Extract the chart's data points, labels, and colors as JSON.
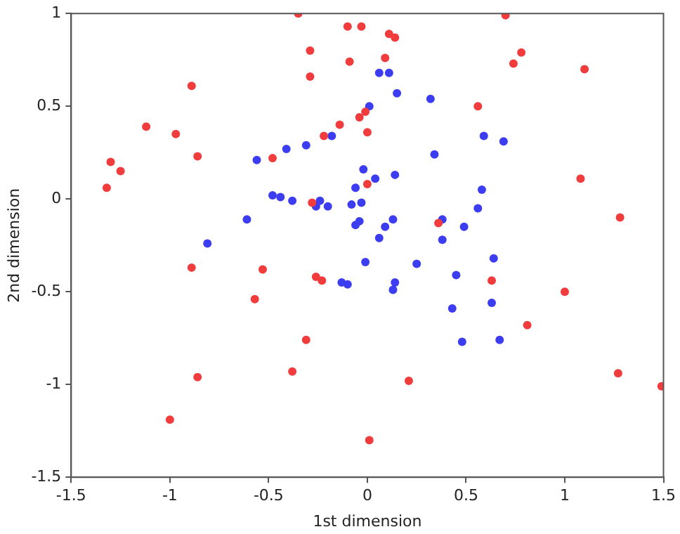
{
  "chart_data": {
    "type": "scatter",
    "xlabel": "1st dimension",
    "ylabel": "2nd dimension",
    "xlim": [
      -1.5,
      1.5
    ],
    "ylim": [
      -1.5,
      1
    ],
    "xticks": [
      -1.5,
      -1,
      -0.5,
      0,
      0.5,
      1,
      1.5
    ],
    "yticks": [
      -1.5,
      -1,
      -0.5,
      0,
      0.5,
      1
    ],
    "grid": false,
    "legend": false,
    "marker": "circle",
    "series": [
      {
        "color": "#f03c3c",
        "x": [
          -0.35,
          -0.1,
          -0.03,
          -0.29,
          -0.09,
          -0.29,
          -0.89,
          -1.12,
          -0.97,
          -0.14,
          -0.04,
          -0.01,
          -0.22,
          0.0,
          -0.86,
          -0.48,
          -1.3,
          -1.25,
          -1.32,
          -0.28,
          0.0,
          0.11,
          0.14,
          0.09,
          0.7,
          0.78,
          0.74,
          1.1,
          0.56,
          1.08,
          1.28,
          0.36,
          -0.89,
          -0.53,
          -0.26,
          -0.23,
          -0.57,
          -0.31,
          -0.38,
          -0.86,
          -1.0,
          0.01,
          0.63,
          1.0,
          0.81,
          0.21,
          1.27,
          1.49
        ],
        "values": [
          1.0,
          0.93,
          0.93,
          0.8,
          0.74,
          0.66,
          0.61,
          0.39,
          0.35,
          0.4,
          0.44,
          0.47,
          0.34,
          0.36,
          0.23,
          0.22,
          0.2,
          0.15,
          0.06,
          -0.02,
          0.08,
          0.89,
          0.87,
          0.76,
          0.99,
          0.79,
          0.73,
          0.7,
          0.5,
          0.11,
          -0.1,
          -0.13,
          -0.37,
          -0.38,
          -0.42,
          -0.44,
          -0.54,
          -0.76,
          -0.93,
          -0.96,
          -1.19,
          -1.3,
          -0.44,
          -0.5,
          -0.68,
          -0.98,
          -0.94,
          -1.01
        ]
      },
      {
        "color": "#3c3cf0",
        "x": [
          0.01,
          -0.18,
          -0.31,
          -0.41,
          -0.56,
          -0.02,
          -0.06,
          -0.48,
          -0.44,
          -0.38,
          -0.24,
          -0.26,
          -0.2,
          -0.08,
          -0.03,
          -0.06,
          -0.04,
          -0.61,
          -0.81,
          0.06,
          0.11,
          0.15,
          0.32,
          0.59,
          0.69,
          0.34,
          0.04,
          0.14,
          0.58,
          0.56,
          0.13,
          0.09,
          0.38,
          0.49,
          0.06,
          0.38,
          -0.01,
          -0.13,
          -0.1,
          0.25,
          0.64,
          0.45,
          0.14,
          0.13,
          0.43,
          0.63,
          0.48,
          0.67
        ],
        "values": [
          0.5,
          0.34,
          0.29,
          0.27,
          0.21,
          0.16,
          0.06,
          0.02,
          0.01,
          -0.01,
          -0.01,
          -0.04,
          -0.04,
          -0.03,
          -0.02,
          -0.14,
          -0.12,
          -0.11,
          -0.24,
          0.68,
          0.68,
          0.57,
          0.54,
          0.34,
          0.31,
          0.24,
          0.11,
          0.13,
          0.05,
          -0.05,
          -0.11,
          -0.15,
          -0.11,
          -0.15,
          -0.21,
          -0.22,
          -0.34,
          -0.45,
          -0.46,
          -0.35,
          -0.32,
          -0.41,
          -0.45,
          -0.49,
          -0.59,
          -0.56,
          -0.77,
          -0.76
        ]
      }
    ]
  }
}
